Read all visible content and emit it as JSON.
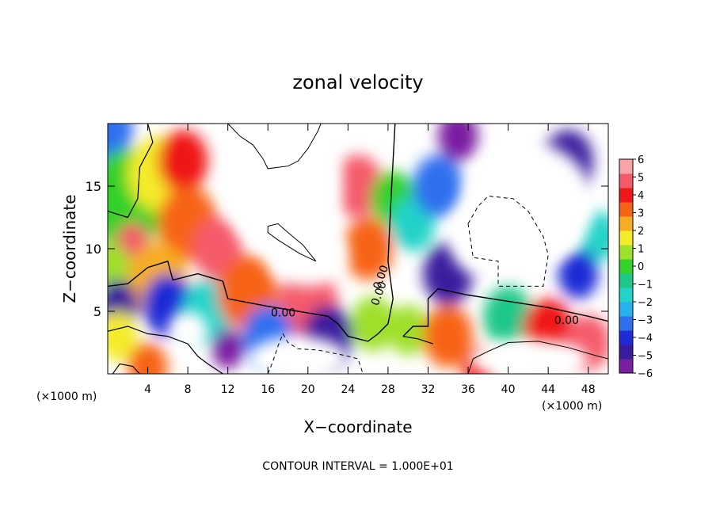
{
  "chart_data": {
    "type": "heatmap",
    "title": "zonal velocity",
    "xlabel": "X−coordinate",
    "ylabel": "Z−coordinate",
    "x_unit": "(×1000 m)",
    "z_unit": "(×1000 m)",
    "xlim": [
      0,
      50
    ],
    "ylim": [
      0,
      20
    ],
    "x_ticks": [
      4,
      8,
      12,
      16,
      20,
      24,
      28,
      32,
      36,
      40,
      44,
      48
    ],
    "y_ticks": [
      5,
      10,
      15
    ],
    "colorbar": {
      "min": -6,
      "max": 6,
      "ticks": [
        "6",
        "5",
        "4",
        "3",
        "2",
        "1",
        "0",
        "−1",
        "−2",
        "−3",
        "−4",
        "−5",
        "−6"
      ],
      "colors": [
        "#7a1fa2",
        "#3a1c9e",
        "#1f2bd6",
        "#2f6ff0",
        "#27b1ee",
        "#22d3c8",
        "#1ec78a",
        "#33d12c",
        "#9fe02a",
        "#f4ec2a",
        "#f7ad20",
        "#f76316",
        "#f01818",
        "#f55a6b",
        "#f7a3a8"
      ]
    },
    "contour_labels": [
      "0.00",
      "0.00",
      "0.00",
      "0.00"
    ],
    "contour_interval": "CONTOUR INTERVAL = 1.000E+01",
    "contour_interval_value": 10,
    "saturated_regions_note": "",
    "field_blobs": [
      {
        "x": 0,
        "z": 19.5,
        "v": -3.5,
        "r": 2.5
      },
      {
        "x": 2,
        "z": 14,
        "v": 0,
        "r": 4
      },
      {
        "x": 5,
        "z": 16,
        "v": 1.5,
        "r": 3
      },
      {
        "x": 7.5,
        "z": 17,
        "v": 4,
        "r": 2.5
      },
      {
        "x": 2.5,
        "z": 10.5,
        "v": 5,
        "r": 1.6
      },
      {
        "x": 8,
        "z": 12,
        "v": 3.5,
        "r": 3
      },
      {
        "x": 11,
        "z": 10,
        "v": 4.5,
        "r": 2.5
      },
      {
        "x": 0,
        "z": 8,
        "v": 0.5,
        "r": 2.5
      },
      {
        "x": 5,
        "z": 7.5,
        "v": 2,
        "r": 3
      },
      {
        "x": 1,
        "z": 5.5,
        "v": -5,
        "r": 2
      },
      {
        "x": 6,
        "z": 5.5,
        "v": -4,
        "r": 2.5
      },
      {
        "x": 1,
        "z": 3,
        "v": 1.5,
        "r": 2
      },
      {
        "x": 10,
        "z": 5,
        "v": -2,
        "r": 2.5
      },
      {
        "x": 14,
        "z": 6.5,
        "v": 3,
        "r": 3
      },
      {
        "x": 20,
        "z": 5.5,
        "v": 5,
        "r": 3
      },
      {
        "x": 16,
        "z": 3,
        "v": -3,
        "r": 2.5
      },
      {
        "x": 22,
        "z": 3,
        "v": -4.5,
        "r": 2.5
      },
      {
        "x": 12,
        "z": 2,
        "v": -5.5,
        "r": 1.6
      },
      {
        "x": 25,
        "z": 15,
        "v": 5,
        "r": 2.5
      },
      {
        "x": 26,
        "z": 10,
        "v": 3,
        "r": 2.5
      },
      {
        "x": 26.5,
        "z": 4,
        "v": 1,
        "r": 2.2
      },
      {
        "x": 28.5,
        "z": 14,
        "v": 0,
        "r": 2.2
      },
      {
        "x": 30.5,
        "z": 12,
        "v": -2,
        "r": 2.2
      },
      {
        "x": 33,
        "z": 15,
        "v": -3.5,
        "r": 2.5
      },
      {
        "x": 35,
        "z": 19,
        "v": -5.5,
        "r": 2
      },
      {
        "x": 34,
        "z": 8,
        "v": -4.5,
        "r": 2.5
      },
      {
        "x": 30,
        "z": 3.5,
        "v": 0.5,
        "r": 2
      },
      {
        "x": 34,
        "z": 3,
        "v": 3.5,
        "r": 2.5
      },
      {
        "x": 40,
        "z": 4.5,
        "v": -1,
        "r": 2.5
      },
      {
        "x": 44,
        "z": 3.5,
        "v": 4,
        "r": 2.5
      },
      {
        "x": 48,
        "z": 2.5,
        "v": 5,
        "r": 2.2
      },
      {
        "x": 46,
        "z": 17,
        "v": -4.5,
        "r": 2.5
      },
      {
        "x": 49,
        "z": 11,
        "v": -2,
        "r": 2
      },
      {
        "x": 47,
        "z": 8,
        "v": -4,
        "r": 2
      },
      {
        "x": 37,
        "z": 0.5,
        "v": 4,
        "r": 1.6
      },
      {
        "x": 4,
        "z": 0.5,
        "v": 3,
        "r": 2
      }
    ],
    "white_regions": [
      {
        "x": 17.5,
        "z": 15,
        "rx": 6,
        "rz": 5.5
      },
      {
        "x": 20,
        "z": 9.5,
        "rx": 4,
        "rz": 2.5
      },
      {
        "x": 42,
        "z": 13.5,
        "rx": 6.5,
        "rz": 5
      },
      {
        "x": 37,
        "z": 11,
        "rx": 3,
        "rz": 3
      },
      {
        "x": 8,
        "z": 3.5,
        "rx": 2,
        "rz": 1.5
      },
      {
        "x": 19,
        "z": 1.2,
        "rx": 5,
        "rz": 1.8
      },
      {
        "x": 42,
        "z": 1.2,
        "rx": 6,
        "rz": 1.6
      }
    ]
  }
}
